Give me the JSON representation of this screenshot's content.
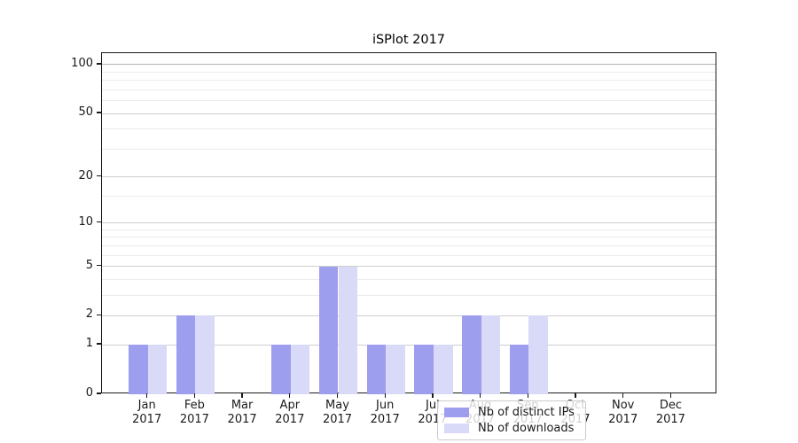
{
  "title": "iSPlot 2017",
  "chart_data": {
    "type": "bar",
    "title": "iSPlot 2017",
    "categories": [
      "Jan 2017",
      "Feb 2017",
      "Mar 2017",
      "Apr 2017",
      "May 2017",
      "Jun 2017",
      "Jul 2017",
      "Aug 2017",
      "Sep 2017",
      "Oct 2017",
      "Nov 2017",
      "Dec 2017"
    ],
    "x_tick_months": [
      "Jan",
      "Feb",
      "Mar",
      "Apr",
      "May",
      "Jun",
      "Jul",
      "Aug",
      "Sep",
      "Oct",
      "Nov",
      "Dec"
    ],
    "x_tick_year": "2017",
    "series": [
      {
        "name": "Nb of distinct IPs",
        "color": "#9e9eee",
        "values": [
          1,
          2,
          0,
          1,
          5,
          1,
          1,
          2,
          1,
          0,
          0,
          0
        ]
      },
      {
        "name": "Nb of downloads",
        "color": "#d9d9f8",
        "values": [
          1,
          2,
          0,
          1,
          5,
          1,
          1,
          2,
          2,
          0,
          0,
          0
        ]
      }
    ],
    "yscale": "log10(1+x)",
    "y_major_ticks": [
      0,
      1,
      2,
      5,
      10,
      20,
      50,
      100
    ],
    "y_tick_labels": [
      "0",
      "1",
      "2",
      "5",
      "10",
      "20",
      "50",
      "100"
    ],
    "y_minor_gridlines": [
      3,
      4,
      6,
      7,
      8,
      9,
      15,
      30,
      40,
      60,
      70,
      80,
      90
    ],
    "ylim": [
      0,
      117
    ],
    "grid": true,
    "legend_position": "inside-bottom-center"
  },
  "colors": {
    "bar_dark": "#9e9eee",
    "bar_light": "#d9d9f8",
    "grid_major": "#cecece",
    "grid_top": "#b2b2b2",
    "grid_minor": "#ebebeb",
    "axis": "#1a1a1a",
    "legend_border": "#cccccc",
    "background": "#ffffff"
  }
}
